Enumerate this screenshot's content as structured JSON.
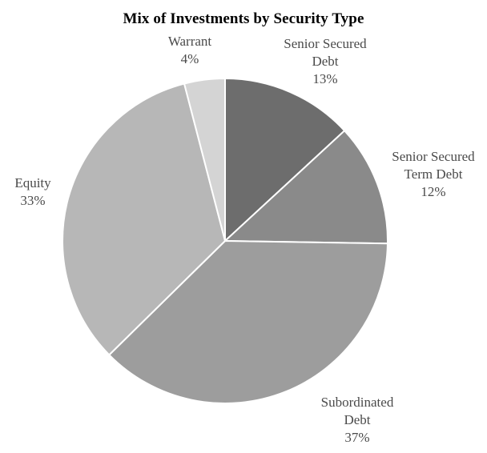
{
  "chart_data": {
    "type": "pie",
    "title": "Mix of Investments by Security Type",
    "slices": [
      {
        "label_lines": [
          "Senior Secured",
          "Debt"
        ],
        "percent_label": "13%",
        "value": 13,
        "color": "#6d6d6d"
      },
      {
        "label_lines": [
          "Senior Secured",
          "Term Debt"
        ],
        "percent_label": "12%",
        "value": 12,
        "color": "#8a8a8a"
      },
      {
        "label_lines": [
          "Subordinated",
          "Debt"
        ],
        "percent_label": "37%",
        "value": 37,
        "color": "#9d9d9d"
      },
      {
        "label_lines": [
          "Equity"
        ],
        "percent_label": "33%",
        "value": 33,
        "color": "#b7b7b7"
      },
      {
        "label_lines": [
          "Warrant"
        ],
        "percent_label": "4%",
        "value": 4,
        "color": "#d4d4d4"
      }
    ],
    "start": "12 o'clock",
    "direction": "clockwise"
  }
}
